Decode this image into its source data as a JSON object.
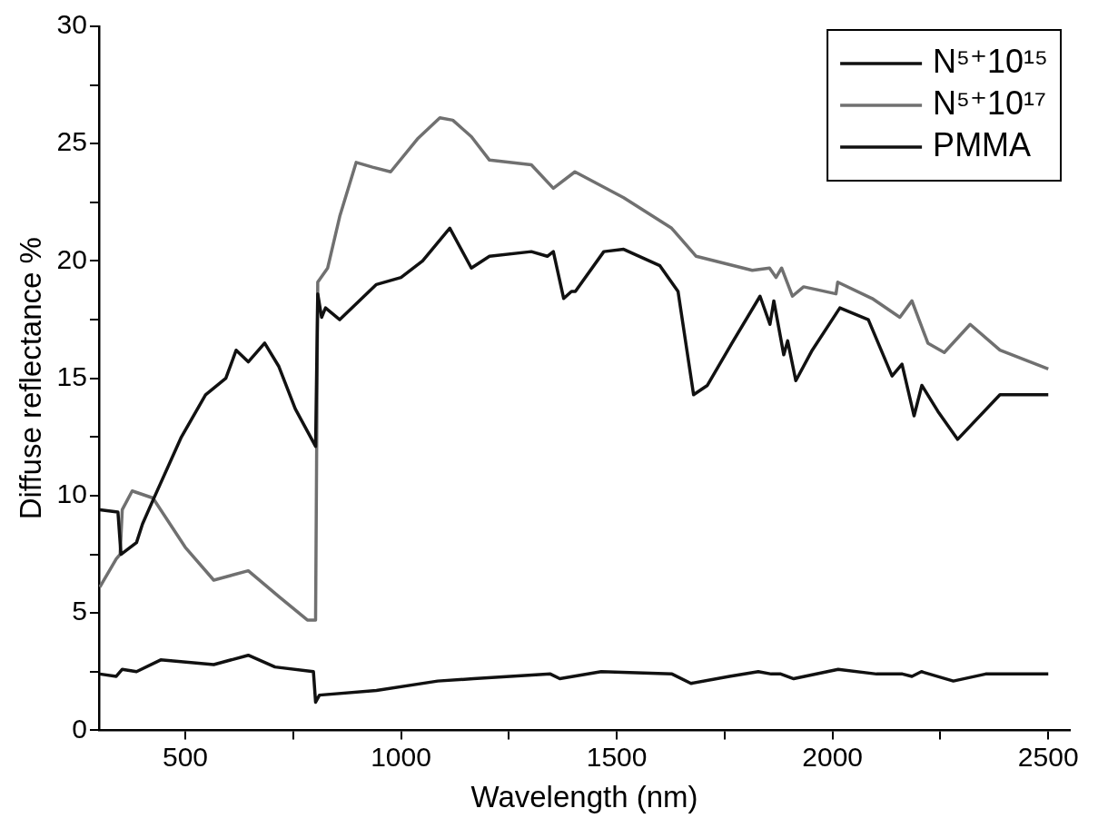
{
  "chart_data": {
    "type": "line",
    "xlabel": "Wavelength (nm)",
    "ylabel": "Diffuse reflectance %",
    "xlim": [
      300,
      2550
    ],
    "ylim": [
      0,
      30
    ],
    "xticks": [
      500,
      {
        "value": 750,
        "label": null
      },
      1000,
      {
        "value": 1250,
        "label": null
      },
      1500,
      {
        "value": 1750,
        "label": null
      },
      2000,
      {
        "value": 2250,
        "label": null
      },
      2500
    ],
    "yticks": [
      0,
      {
        "value": 2.5,
        "label": null
      },
      5,
      {
        "value": 7.5,
        "label": null
      },
      10,
      {
        "value": 12.5,
        "label": null
      },
      15,
      {
        "value": 17.5,
        "label": null
      },
      20,
      {
        "value": 22.5,
        "label": null
      },
      25,
      {
        "value": 27.5,
        "label": null
      },
      30
    ],
    "grid": false,
    "legend": "top right",
    "marker": "none",
    "line_style": "solid",
    "series": [
      {
        "name": "N⁵⁺10¹⁵",
        "color": "#111111",
        "x": [
          302,
          344,
          351,
          387,
          401,
          425,
          491,
          547,
          594,
          618,
          646,
          684,
          717,
          755,
          802,
          807,
          816,
          825,
          858,
          943,
          1000,
          1050,
          1113,
          1163,
          1205,
          1302,
          1339,
          1353,
          1377,
          1395,
          1404,
          1470,
          1516,
          1600,
          1642,
          1678,
          1710,
          1767,
          1832,
          1855,
          1864,
          1887,
          1896,
          1915,
          1953,
          2017,
          2083,
          2138,
          2161,
          2189,
          2207,
          2244,
          2290,
          2388,
          2500
        ],
        "values": [
          9.4,
          9.3,
          7.5,
          8.0,
          8.8,
          9.8,
          12.5,
          14.3,
          15.0,
          16.2,
          15.7,
          16.5,
          15.5,
          13.7,
          12.1,
          18.6,
          17.6,
          18.0,
          17.5,
          19.0,
          19.3,
          20.0,
          21.4,
          19.7,
          20.2,
          20.4,
          20.2,
          20.4,
          18.4,
          18.7,
          18.7,
          20.4,
          20.5,
          19.8,
          18.7,
          14.3,
          14.7,
          16.5,
          18.5,
          17.3,
          18.3,
          16.0,
          16.6,
          14.9,
          16.2,
          18.0,
          17.5,
          15.1,
          15.6,
          13.4,
          14.7,
          13.6,
          12.4,
          14.3,
          14.3
        ]
      },
      {
        "name": "N⁵⁺10¹⁷",
        "color": "#707070",
        "x": [
          302,
          340,
          349,
          354,
          377,
          425,
          500,
          566,
          646,
          717,
          783,
          802,
          807,
          830,
          858,
          896,
          934,
          976,
          1038,
          1090,
          1120,
          1163,
          1205,
          1302,
          1353,
          1403,
          1516,
          1627,
          1684,
          1814,
          1854,
          1869,
          1882,
          1907,
          1933,
          2008,
          2012,
          2092,
          2156,
          2184,
          2221,
          2259,
          2319,
          2388,
          2500
        ],
        "values": [
          6.1,
          7.3,
          7.5,
          9.4,
          10.2,
          9.9,
          7.8,
          6.4,
          6.8,
          5.7,
          4.7,
          4.7,
          19.1,
          19.7,
          21.9,
          24.2,
          24.0,
          23.8,
          25.2,
          26.1,
          26.0,
          25.3,
          24.3,
          24.1,
          23.1,
          23.8,
          22.7,
          21.4,
          20.2,
          19.6,
          19.7,
          19.3,
          19.7,
          18.5,
          18.9,
          18.6,
          19.1,
          18.4,
          17.6,
          18.3,
          16.5,
          16.1,
          17.3,
          16.2,
          15.4
        ]
      },
      {
        "name": "PMMA",
        "color": "#111111",
        "x": [
          302,
          340,
          354,
          387,
          443,
          566,
          646,
          708,
          797,
          802,
          811,
          943,
          1085,
          1168,
          1346,
          1368,
          1464,
          1628,
          1672,
          1761,
          1828,
          1858,
          1880,
          1910,
          2013,
          2102,
          2162,
          2184,
          2206,
          2280,
          2355,
          2500
        ],
        "values": [
          2.4,
          2.3,
          2.6,
          2.5,
          3.0,
          2.8,
          3.2,
          2.7,
          2.5,
          1.2,
          1.5,
          1.7,
          2.1,
          2.2,
          2.4,
          2.2,
          2.5,
          2.4,
          2.0,
          2.3,
          2.5,
          2.4,
          2.4,
          2.2,
          2.6,
          2.4,
          2.4,
          2.3,
          2.5,
          2.1,
          2.4,
          2.4
        ]
      }
    ]
  }
}
